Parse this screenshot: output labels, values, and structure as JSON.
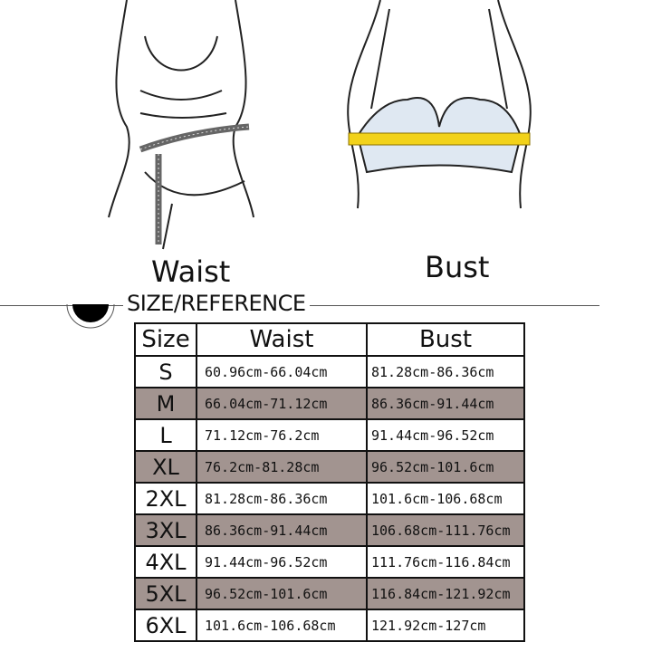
{
  "illustrations": {
    "waist_label": "Waist",
    "bust_label": "Bust"
  },
  "section": {
    "title": "SIZE/REFERENCE"
  },
  "colors": {
    "shaded_row": "#a29490",
    "tape": "#f2d21a",
    "bra_fill": "#dfe8f2"
  },
  "table": {
    "headers": [
      "Size",
      "Waist",
      "Bust"
    ],
    "rows": [
      {
        "size": "S",
        "waist": "60.96cm-66.04cm",
        "bust": "81.28cm-86.36cm",
        "shaded": false
      },
      {
        "size": "M",
        "waist": "66.04cm-71.12cm",
        "bust": "86.36cm-91.44cm",
        "shaded": true
      },
      {
        "size": "L",
        "waist": "71.12cm-76.2cm",
        "bust": "91.44cm-96.52cm",
        "shaded": false
      },
      {
        "size": "XL",
        "waist": "76.2cm-81.28cm",
        "bust": "96.52cm-101.6cm",
        "shaded": true
      },
      {
        "size": "2XL",
        "waist": "81.28cm-86.36cm",
        "bust": "101.6cm-106.68cm",
        "shaded": false
      },
      {
        "size": "3XL",
        "waist": "86.36cm-91.44cm",
        "bust": "106.68cm-111.76cm",
        "shaded": true
      },
      {
        "size": "4XL",
        "waist": "91.44cm-96.52cm",
        "bust": "111.76cm-116.84cm",
        "shaded": false
      },
      {
        "size": "5XL",
        "waist": "96.52cm-101.6cm",
        "bust": "116.84cm-121.92cm",
        "shaded": true
      },
      {
        "size": "6XL",
        "waist": "101.6cm-106.68cm",
        "bust": "121.92cm-127cm",
        "shaded": false
      }
    ]
  }
}
